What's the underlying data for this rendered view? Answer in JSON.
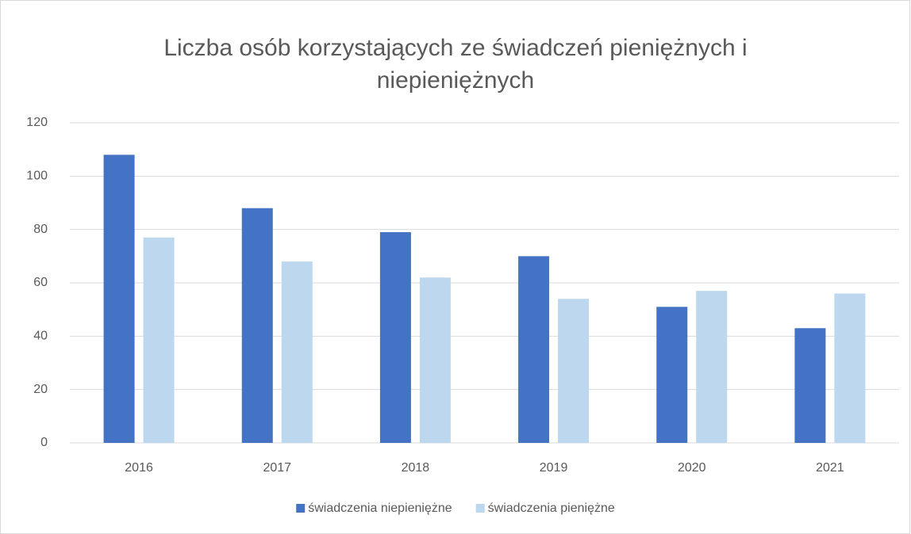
{
  "chart_data": {
    "type": "bar",
    "title": "Liczba osób korzystających ze świadczeń pieniężnych i niepieniężnych",
    "categories": [
      "2016",
      "2017",
      "2018",
      "2019",
      "2020",
      "2021"
    ],
    "series": [
      {
        "name": "świadczenia niepieniężne",
        "color": "#4472c4",
        "values": [
          108,
          88,
          79,
          70,
          51,
          43
        ]
      },
      {
        "name": "świadczenia pieniężne",
        "color": "#bdd7ee",
        "values": [
          77,
          68,
          62,
          54,
          57,
          56
        ]
      }
    ],
    "ylim": [
      0,
      120
    ],
    "yticks": [
      0,
      20,
      40,
      60,
      80,
      100,
      120
    ],
    "grid": true,
    "legend": "bottom"
  }
}
